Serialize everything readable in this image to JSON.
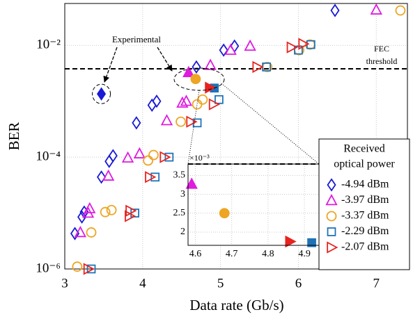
{
  "chart_data": {
    "type": "scatter",
    "x_label": "Data rate (Gb/s)",
    "y_label": "BER",
    "xlim": [
      3,
      7.4
    ],
    "ylim": [
      1e-06,
      0.056
    ],
    "log_y": true,
    "xticks": [
      3,
      4,
      5,
      6,
      7
    ],
    "yticks": [
      {
        "value": 1e-06,
        "label": "10⁻⁶"
      },
      {
        "value": 0.0001,
        "label": "10⁻⁴"
      },
      {
        "value": 0.01,
        "label": "10⁻²"
      }
    ],
    "grid": true,
    "legend_position": "lower right",
    "legend_title": [
      "Received",
      "optical power"
    ],
    "threshold": 0.0038,
    "threshold_label": [
      "FEC",
      "threshold"
    ],
    "annotation": "Experimental",
    "series": [
      {
        "name": "-4.94 dBm",
        "color": "#1a1ad6",
        "marker": "diamond",
        "x": [
          3.13,
          3.22,
          3.25,
          3.47,
          3.57,
          3.62,
          3.92,
          4.12,
          4.18,
          4.69,
          5.04,
          5.18,
          6.47
        ],
        "values": [
          4.3e-06,
          8.5e-06,
          1.04e-05,
          4.4e-05,
          8.4e-05,
          0.000106,
          0.00041,
          0.00085,
          0.001,
          0.0041,
          0.0082,
          0.0097,
          0.042
        ],
        "experimental": {
          "x": 3.47,
          "y": 0.00135
        }
      },
      {
        "name": "-3.97 dBm",
        "color": "#e01be0",
        "marker": "triangle",
        "x": [
          3.2,
          3.3,
          3.32,
          3.56,
          3.81,
          3.96,
          4.31,
          4.51,
          4.56,
          4.87,
          5.13,
          5.38,
          7.0
        ],
        "values": [
          4.5e-06,
          1e-05,
          1.2e-05,
          4.6e-05,
          9.7e-05,
          0.000115,
          0.00045,
          0.00093,
          0.001,
          0.0044,
          0.0082,
          0.0097,
          0.043
        ],
        "experimental": {
          "x": 4.59,
          "y": 0.00327
        }
      },
      {
        "name": "-3.37 dBm",
        "color": "#eda523",
        "marker": "circle",
        "x": [
          3.16,
          3.34,
          3.52,
          3.6,
          4.07,
          4.14,
          4.49,
          4.7,
          4.77,
          5.6,
          6.01,
          6.15,
          7.31
        ],
        "values": [
          1.1e-06,
          4.5e-06,
          1.04e-05,
          1.13e-05,
          8.7e-05,
          0.000109,
          0.00043,
          0.00088,
          0.00107,
          0.0041,
          0.0082,
          0.0103,
          0.042
        ],
        "experimental": {
          "x": 4.68,
          "y": 0.0025
        }
      },
      {
        "name": "-2.29 dBm",
        "color": "#1f72b8",
        "marker": "square",
        "x": [
          3.34,
          3.9,
          4.16,
          4.34,
          4.7,
          4.98,
          5.59,
          6.0,
          6.16
        ],
        "values": [
          1e-06,
          1e-05,
          4.4e-05,
          0.0001,
          0.00041,
          0.00107,
          0.0041,
          0.0082,
          0.0103
        ],
        "experimental": {
          "x": 4.92,
          "y": 0.00172
        }
      },
      {
        "name": "-2.07 dBm",
        "color": "#e8231f",
        "marker": "triangle-right",
        "x": [
          3.3,
          3.83,
          3.84,
          4.09,
          4.28,
          4.62,
          4.91,
          5.47,
          5.91,
          6.06
        ],
        "values": [
          1e-06,
          8.8e-06,
          1.1e-05,
          4.4e-05,
          0.0001,
          0.00043,
          0.00088,
          0.0041,
          0.0092,
          0.0106
        ],
        "experimental": {
          "x": 4.86,
          "y": 0.00175
        }
      }
    ],
    "inset": {
      "xlim": [
        4.58,
        4.94
      ],
      "ylim": [
        0.00165,
        0.0038
      ],
      "xticks": [
        4.6,
        4.7,
        4.8,
        4.9
      ],
      "yticks": [
        {
          "value": 0.002,
          "label": "2"
        },
        {
          "value": 0.0025,
          "label": "2.5"
        },
        {
          "value": 0.003,
          "label": "3"
        },
        {
          "value": 0.0035,
          "label": "3.5"
        }
      ],
      "y_multiplier": "×10⁻³"
    }
  }
}
